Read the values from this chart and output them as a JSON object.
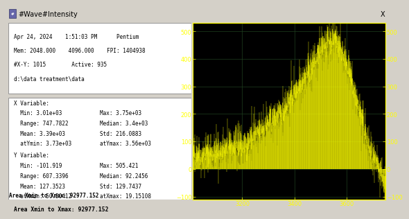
{
  "title": "#Wave#Intensity",
  "lines_top": [
    "Apr 24, 2024    1:51:03 PM      Pentium",
    "Mem: 2048.000    4096.000    FPI: 1404938",
    "#X-Y: 1015        Active: 935",
    "d:\\data treatment\\data"
  ],
  "stats_left": [
    "X Variable:",
    "  Min: 3.01e+03",
    "  Range: 747.7822",
    "  Mean: 3.39e+03",
    "  atYmin: 3.73e+03",
    "Y Variable:",
    "  Min: -101.919",
    "  Range: 607.3396",
    "  Mean: 127.3523",
    "  atXmin: 50.50412"
  ],
  "stats_right": [
    null,
    "Max: 3.75e+03",
    "Median: 3.4e+03",
    "Std: 216.0883",
    "atYmax: 3.56e+03",
    null,
    "Max: 505.421",
    "Median: 92.2456",
    "Std: 129.7437",
    "atXmax: 19.15108"
  ],
  "area_label": "Area Xmin to Xmax: 92977.152",
  "plot_bg": "#000000",
  "signal_color": "#ffff00",
  "plot_xlim": [
    3010,
    3750
  ],
  "plot_ylim": [
    -110,
    530
  ],
  "xticks": [
    3200,
    3400,
    3600
  ],
  "yticks": [
    -100,
    0,
    100,
    200,
    300,
    400,
    500
  ],
  "window_bg": "#d4d0c8",
  "title_bar_color": "#d4d0c8",
  "panel_bg": "#ffffff",
  "text_color": "#000000",
  "grid_color": "#1f3f1f",
  "seed": 42,
  "x_min": 3010,
  "x_max": 3750,
  "n_points": 935
}
